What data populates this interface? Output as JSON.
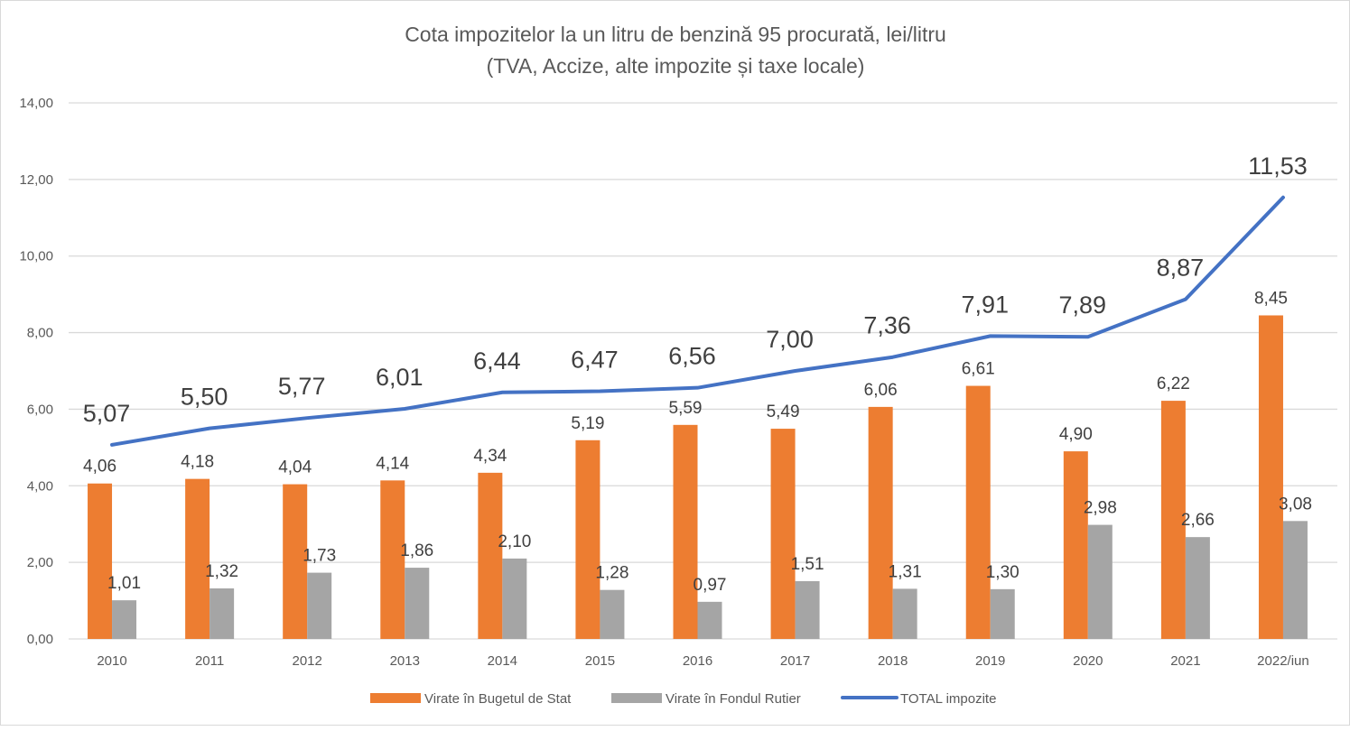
{
  "chart_data": {
    "type": "bar",
    "title": "Cota impozitelor la un litru de benzină 95 procurată, lei/litru",
    "subtitle": "(TVA, Accize, alte impozite și taxe locale)",
    "xlabel": "",
    "ylabel": "",
    "ylim": [
      0,
      14
    ],
    "yticks": [
      "0,00",
      "2,00",
      "4,00",
      "6,00",
      "8,00",
      "10,00",
      "12,00",
      "14,00"
    ],
    "ytick_values": [
      0,
      2,
      4,
      6,
      8,
      10,
      12,
      14
    ],
    "grid": true,
    "legend_position": "bottom",
    "categories": [
      "2010",
      "2011",
      "2012",
      "2013",
      "2014",
      "2015",
      "2016",
      "2017",
      "2018",
      "2019",
      "2020",
      "2021",
      "2022/iun"
    ],
    "series": [
      {
        "name": "Virate în Bugetul de Stat",
        "type": "bar",
        "color": "#ED7D31",
        "values": [
          4.06,
          4.18,
          4.04,
          4.14,
          4.34,
          5.19,
          5.59,
          5.49,
          6.06,
          6.61,
          4.9,
          6.22,
          8.45
        ],
        "labels": [
          "4,06",
          "4,18",
          "4,04",
          "4,14",
          "4,34",
          "5,19",
          "5,59",
          "5,49",
          "6,06",
          "6,61",
          "4,90",
          "6,22",
          "8,45"
        ]
      },
      {
        "name": "Virate în Fondul Rutier",
        "type": "bar",
        "color": "#A5A5A5",
        "values": [
          1.01,
          1.32,
          1.73,
          1.86,
          2.1,
          1.28,
          0.97,
          1.51,
          1.31,
          1.3,
          2.98,
          2.66,
          3.08
        ],
        "labels": [
          "1,01",
          "1,32",
          "1,73",
          "1,86",
          "2,10",
          "1,28",
          "0,97",
          "1,51",
          "1,31",
          "1,30",
          "2,98",
          "2,66",
          "3,08"
        ]
      },
      {
        "name": "TOTAL impozite",
        "type": "line",
        "color": "#4472C4",
        "values": [
          5.07,
          5.5,
          5.77,
          6.01,
          6.44,
          6.47,
          6.56,
          7.0,
          7.36,
          7.91,
          7.89,
          8.87,
          11.53
        ],
        "labels": [
          "5,07",
          "5,50",
          "5,77",
          "6,01",
          "6,44",
          "6,47",
          "6,56",
          "7,00",
          "7,36",
          "7,91",
          "7,89",
          "8,87",
          "11,53"
        ]
      }
    ]
  },
  "colors": {
    "grid": "#d9d9d9",
    "text": "#595959",
    "label": "#404040"
  }
}
